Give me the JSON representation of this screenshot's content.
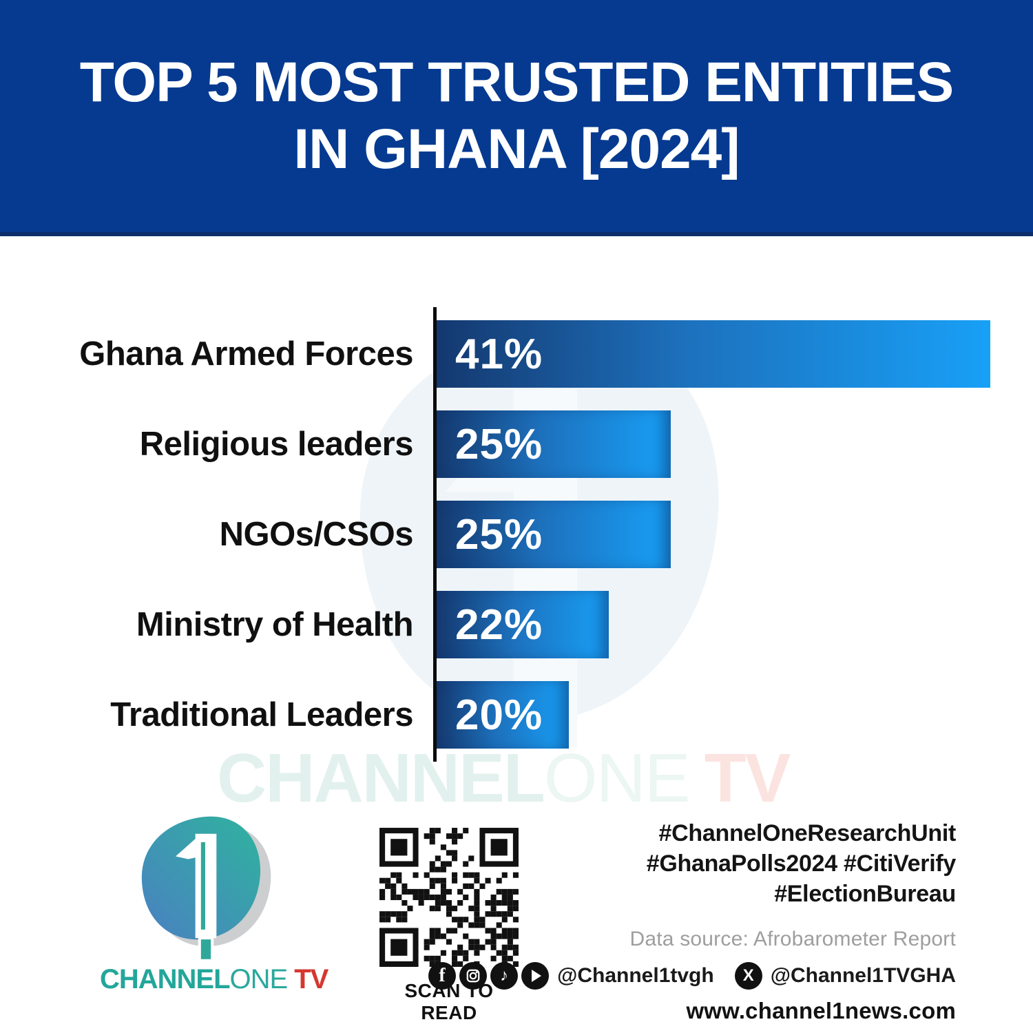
{
  "header": {
    "title_line1": "TOP 5 MOST TRUSTED ENTITIES",
    "title_line2": "IN GHANA [2024]"
  },
  "chart_data": {
    "type": "bar",
    "orientation": "horizontal",
    "title": "TOP 5 MOST TRUSTED ENTITIES IN GHANA [2024]",
    "categories": [
      "Ghana Armed Forces",
      "Religious leaders",
      "NGOs/CSOs",
      "Ministry of Health",
      "Traditional Leaders"
    ],
    "values": [
      41,
      25,
      25,
      22,
      20
    ],
    "value_labels": [
      "41%",
      "25%",
      "25%",
      "22%",
      "20%"
    ],
    "unit": "%",
    "value_label_position": "inside-left",
    "axis_style": "single black vertical baseline, no gridlines, no tick labels",
    "legend": "none",
    "bar_display_widths_relative": [
      0.973,
      0.412,
      0.412,
      0.303,
      0.232
    ]
  },
  "watermark": {
    "part1": "CHANNEL",
    "part2": "ONE",
    "part3": "TV"
  },
  "footer": {
    "logo_wordmark": {
      "part1": "CHANNEL",
      "part2": "ONE",
      "part3": "TV"
    },
    "qr_caption": "SCAN TO READ",
    "hashtags_line1": "#ChannelOneResearchUnit",
    "hashtags_line2": "#GhanaPolls2024 #CitiVerify",
    "hashtags_line3": "#ElectionBureau",
    "data_source": "Data source: Afrobarometer Report",
    "social": {
      "icons": [
        "facebook-icon",
        "instagram-icon",
        "tiktok-icon",
        "youtube-icon"
      ],
      "handle_main": "@Channel1tvgh",
      "x_icon": "x-icon",
      "handle_x": "@Channel1TVGHA"
    },
    "website": "www.channel1news.com"
  },
  "colors": {
    "header_bg": "#053a90",
    "header_border": "#0c2e6b",
    "bar_gradient_start": "#14386f",
    "bar_gradient_end": "#18a0f7",
    "axis": "#0b0b0b",
    "teal": "#23a69a",
    "red": "#d6372f",
    "muted_gray": "#9e9e9e",
    "text_dark": "#141414"
  }
}
